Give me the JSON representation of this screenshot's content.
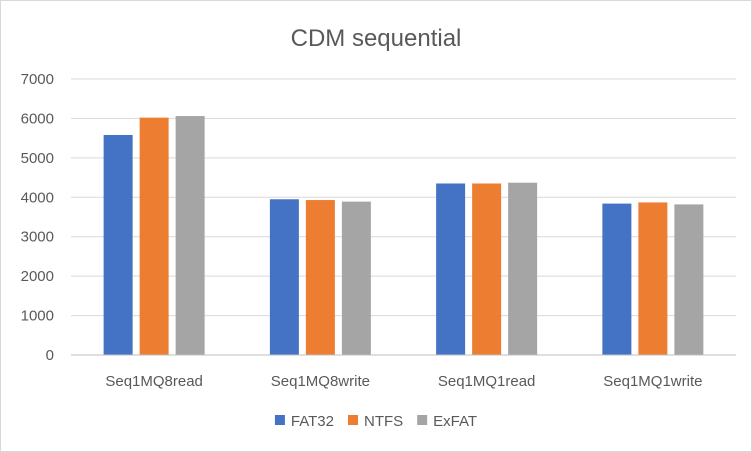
{
  "chart_data": {
    "type": "bar",
    "title": "CDM sequential",
    "xlabel": "",
    "ylabel": "",
    "categories": [
      "Seq1MQ8read",
      "Seq1MQ8write",
      "Seq1MQ1read",
      "Seq1MQ1write"
    ],
    "series": [
      {
        "name": "FAT32",
        "color": "#4472C4",
        "values": [
          5580,
          3950,
          4350,
          3840
        ]
      },
      {
        "name": "NTFS",
        "color": "#ED7D31",
        "values": [
          6020,
          3930,
          4350,
          3870
        ]
      },
      {
        "name": "ExFAT",
        "color": "#A5A5A5",
        "values": [
          6060,
          3890,
          4370,
          3820
        ]
      }
    ],
    "ylim": [
      0,
      7000
    ],
    "yticks": [
      0,
      1000,
      2000,
      3000,
      4000,
      5000,
      6000,
      7000
    ],
    "grid": true,
    "legend_position": "bottom"
  }
}
